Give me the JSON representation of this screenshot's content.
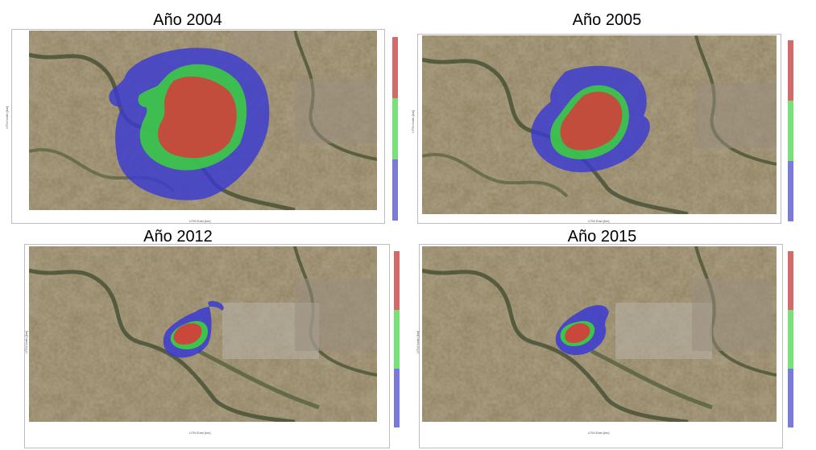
{
  "colors": {
    "red": "#d93a3a",
    "green": "#3cd23c",
    "blue": "#3a3ad2",
    "terrain": "#8a7a55"
  },
  "panels": [
    {
      "id": "p2004",
      "title": "Año 2004",
      "zone_extent": "large"
    },
    {
      "id": "p2005",
      "title": "Año 2005",
      "zone_extent": "medium"
    },
    {
      "id": "p2012",
      "title": "Año 2012",
      "zone_extent": "small"
    },
    {
      "id": "p2015",
      "title": "Año 2015",
      "zone_extent": "small"
    }
  ],
  "axes": {
    "x_label": "UTM East [km]",
    "y_label": "UTM North [km]"
  }
}
